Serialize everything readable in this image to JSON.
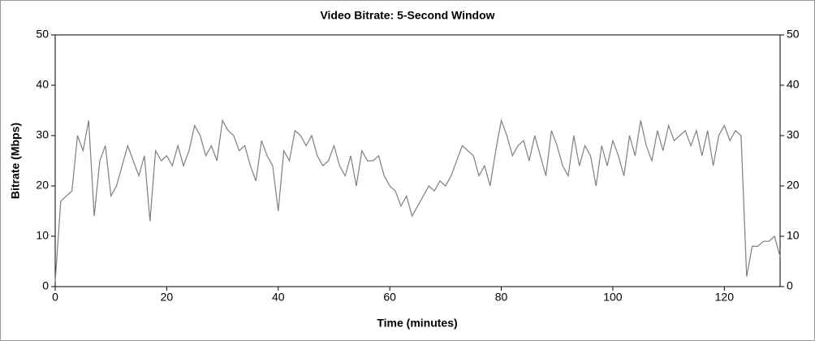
{
  "chart_data": {
    "type": "line",
    "title": "Video Bitrate: 5-Second Window",
    "x_label": "Time (minutes)",
    "y_label": "Bitrate (Mbps)",
    "x": [
      0,
      1,
      2,
      3,
      4,
      5,
      6,
      7,
      8,
      9,
      10,
      11,
      12,
      13,
      14,
      15,
      16,
      17,
      18,
      19,
      20,
      21,
      22,
      23,
      24,
      25,
      26,
      27,
      28,
      29,
      30,
      31,
      32,
      33,
      34,
      35,
      36,
      37,
      38,
      39,
      40,
      41,
      42,
      43,
      44,
      45,
      46,
      47,
      48,
      49,
      50,
      51,
      52,
      53,
      54,
      55,
      56,
      57,
      58,
      59,
      60,
      61,
      62,
      63,
      64,
      65,
      66,
      67,
      68,
      69,
      70,
      71,
      72,
      73,
      74,
      75,
      76,
      77,
      78,
      79,
      80,
      81,
      82,
      83,
      84,
      85,
      86,
      87,
      88,
      89,
      90,
      91,
      92,
      93,
      94,
      95,
      96,
      97,
      98,
      99,
      100,
      101,
      102,
      103,
      104,
      105,
      106,
      107,
      108,
      109,
      110,
      111,
      112,
      113,
      114,
      115,
      116,
      117,
      118,
      119,
      120,
      121,
      122,
      123,
      124,
      125,
      126,
      127,
      128,
      129,
      130
    ],
    "series": [
      {
        "name": "Video Bitrate",
        "color": "#7f7f7f",
        "values": [
          1,
          17,
          18,
          19,
          30,
          27,
          33,
          14,
          25,
          28,
          18,
          20,
          24,
          28,
          25,
          22,
          26,
          13,
          27,
          25,
          26,
          24,
          28,
          24,
          27,
          32,
          30,
          26,
          28,
          25,
          33,
          31,
          30,
          27,
          28,
          24,
          21,
          29,
          26,
          24,
          15,
          27,
          25,
          31,
          30,
          28,
          30,
          26,
          24,
          25,
          28,
          24,
          22,
          26,
          20,
          27,
          25,
          25,
          26,
          22,
          20,
          19,
          16,
          18,
          14,
          16,
          18,
          20,
          19,
          21,
          20,
          22,
          25,
          28,
          27,
          26,
          22,
          24,
          20,
          27,
          33,
          30,
          26,
          28,
          29,
          25,
          30,
          26,
          22,
          31,
          28,
          24,
          22,
          30,
          24,
          28,
          26,
          20,
          28,
          24,
          29,
          26,
          22,
          30,
          26,
          33,
          28,
          25,
          31,
          27,
          32,
          29,
          30,
          31,
          28,
          31,
          26,
          31,
          24,
          30,
          32,
          29,
          31,
          30,
          2,
          8,
          8,
          9,
          9,
          10,
          6
        ]
      }
    ],
    "xlim": [
      0,
      130
    ],
    "xticks": [
      0,
      20,
      40,
      60,
      80,
      100,
      120
    ],
    "ylim": [
      0,
      50
    ],
    "yticks": [
      0,
      10,
      20,
      30,
      40,
      50
    ]
  }
}
